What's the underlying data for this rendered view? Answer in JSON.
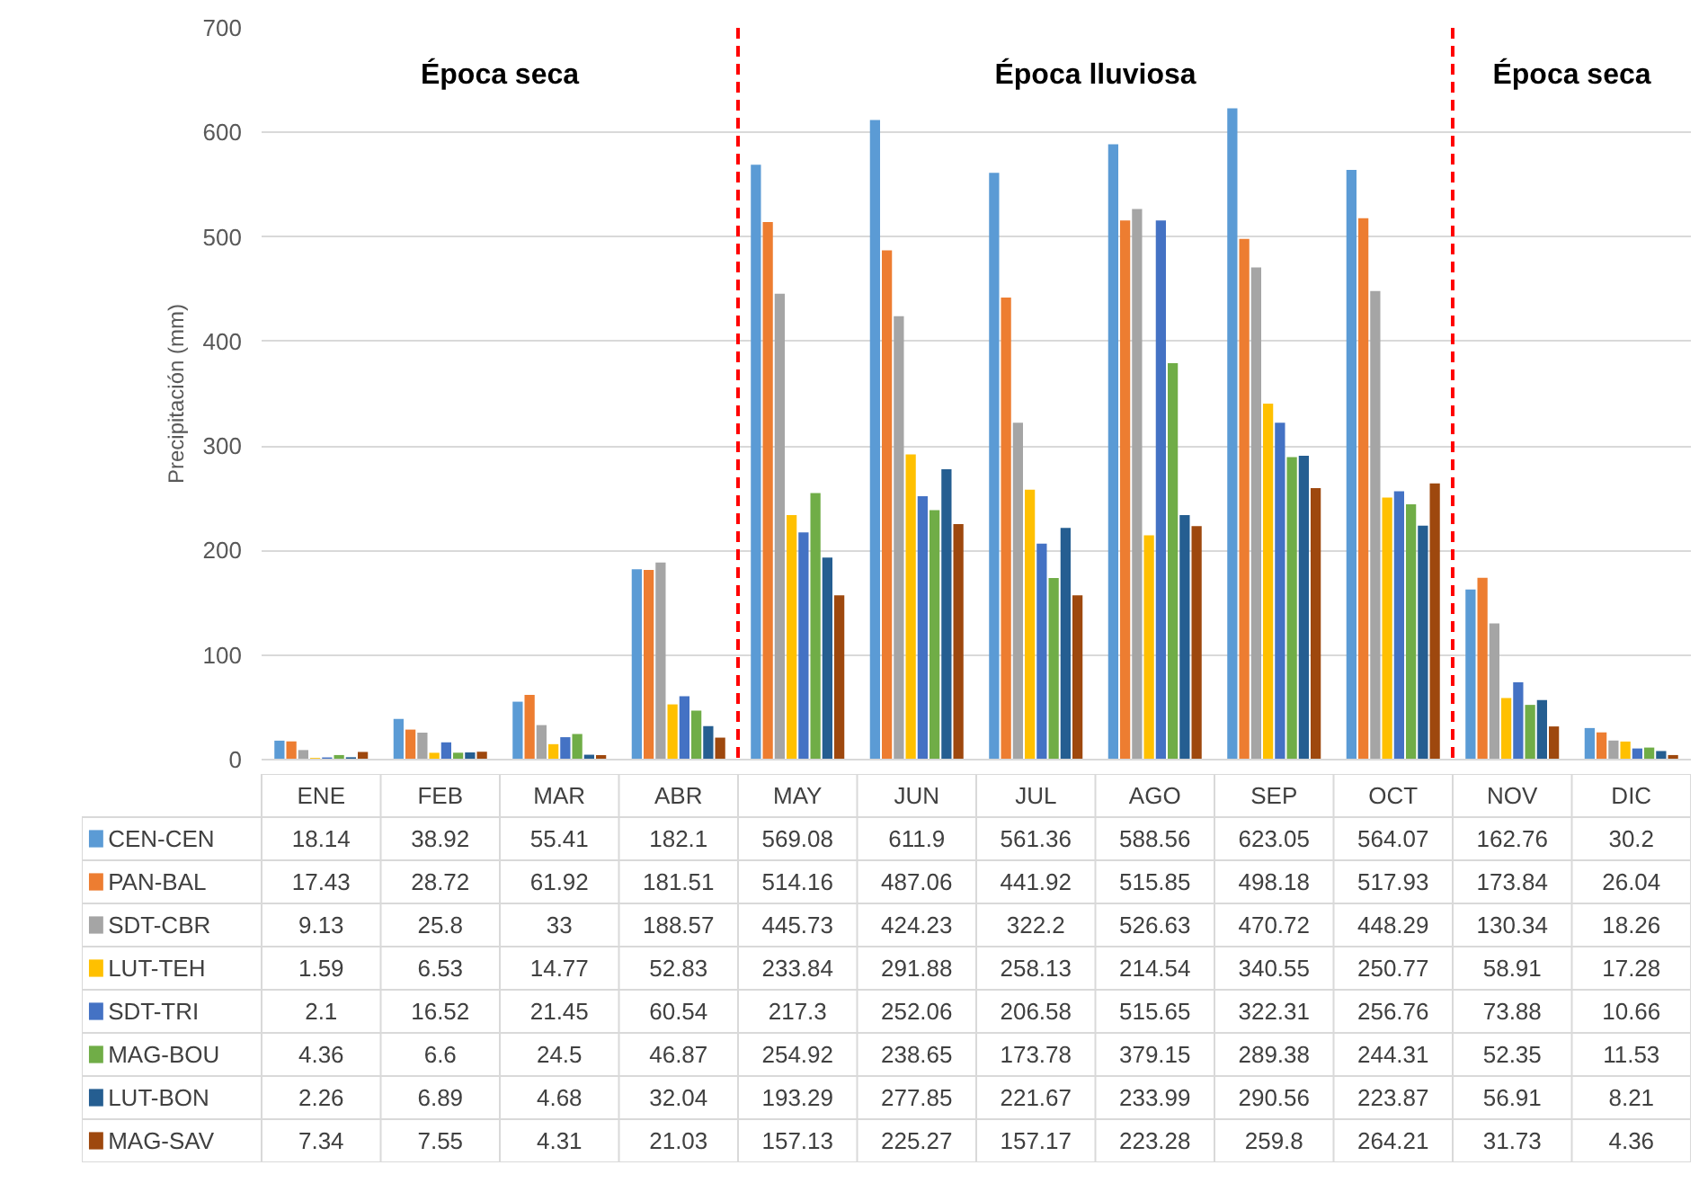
{
  "chart_data": {
    "type": "bar",
    "ylabel": "Precipitación (mm)",
    "categories": [
      "ENE",
      "FEB",
      "MAR",
      "ABR",
      "MAY",
      "JUN",
      "JUL",
      "AGO",
      "SEP",
      "OCT",
      "NOV",
      "DIC"
    ],
    "series": [
      {
        "name": "CEN-CEN",
        "color": "#5b9bd5",
        "values": [
          18.14,
          38.92,
          55.41,
          182.1,
          569.08,
          611.9,
          561.36,
          588.56,
          623.05,
          564.07,
          162.76,
          30.2
        ]
      },
      {
        "name": "PAN-BAL",
        "color": "#ed7d31",
        "values": [
          17.43,
          28.72,
          61.92,
          181.51,
          514.16,
          487.06,
          441.92,
          515.85,
          498.18,
          517.93,
          173.84,
          26.04
        ]
      },
      {
        "name": "SDT-CBR",
        "color": "#a5a5a5",
        "values": [
          9.13,
          25.8,
          33,
          188.57,
          445.73,
          424.23,
          322.2,
          526.63,
          470.72,
          448.29,
          130.34,
          18.26
        ]
      },
      {
        "name": "LUT-TEH",
        "color": "#ffc000",
        "values": [
          1.59,
          6.53,
          14.77,
          52.83,
          233.84,
          291.88,
          258.13,
          214.54,
          340.55,
          250.77,
          58.91,
          17.28
        ]
      },
      {
        "name": "SDT-TRI",
        "color": "#4472c4",
        "values": [
          2.1,
          16.52,
          21.45,
          60.54,
          217.3,
          252.06,
          206.58,
          515.65,
          322.31,
          256.76,
          73.88,
          10.66
        ]
      },
      {
        "name": "MAG-BOU",
        "color": "#70ad47",
        "values": [
          4.36,
          6.6,
          24.5,
          46.87,
          254.92,
          238.65,
          173.78,
          379.15,
          289.38,
          244.31,
          52.35,
          11.53
        ]
      },
      {
        "name": "LUT-BON",
        "color": "#255e91",
        "values": [
          2.26,
          6.89,
          4.68,
          32.04,
          193.29,
          277.85,
          221.67,
          233.99,
          290.56,
          223.87,
          56.91,
          8.21
        ]
      },
      {
        "name": "MAG-SAV",
        "color": "#9e480e",
        "values": [
          7.34,
          7.55,
          4.31,
          21.03,
          157.13,
          225.27,
          157.17,
          223.28,
          259.8,
          264.21,
          31.73,
          4.36
        ]
      }
    ],
    "ylim": [
      0,
      700
    ],
    "yticks": [
      0,
      100,
      200,
      300,
      400,
      500,
      600,
      700
    ],
    "grid": "y",
    "legend": "bottom",
    "data_labels": true,
    "annotations": [
      "Época seca",
      "Época lluviosa",
      "Época seca"
    ]
  }
}
